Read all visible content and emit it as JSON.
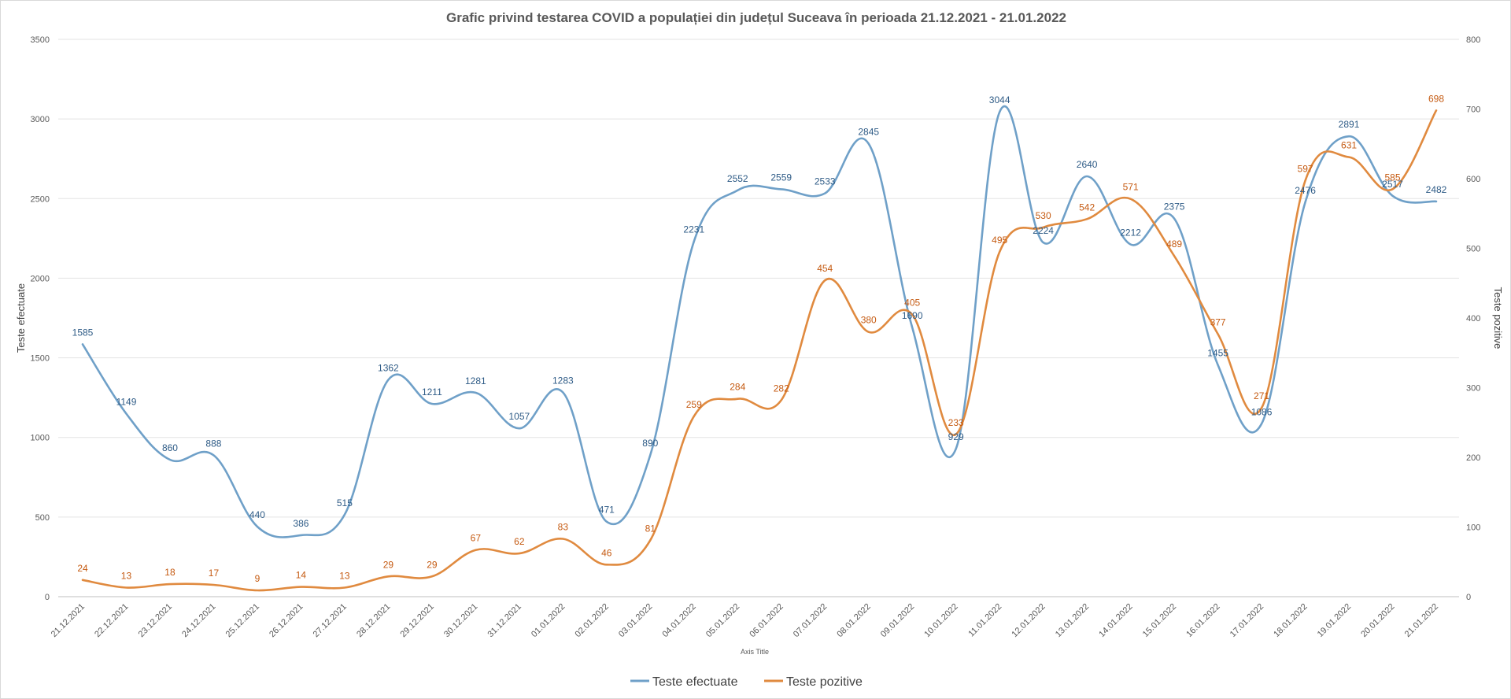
{
  "chart_data": {
    "type": "line",
    "title": "Grafic privind testarea COVID a populației din județul Suceava în perioada 21.12.2021 - 21.01.2022",
    "xlabel": "Axis Title",
    "ylabel_left": "Teste efectuate",
    "ylabel_right": "Teste pozitive",
    "ylim_left": [
      0,
      3500
    ],
    "yticks_left": [
      0,
      500,
      1000,
      1500,
      2000,
      2500,
      3000,
      3500
    ],
    "ylim_right": [
      0,
      800
    ],
    "yticks_right": [
      0,
      100,
      200,
      300,
      400,
      500,
      600,
      700,
      800
    ],
    "grid": true,
    "legend_position": "bottom",
    "smooth": true,
    "categories": [
      "21.12.2021",
      "22.12.2021",
      "23.12.2021",
      "24.12.2021",
      "25.12.2021",
      "26.12.2021",
      "27.12.2021",
      "28.12.2021",
      "29.12.2021",
      "30.12.2021",
      "31.12.2021",
      "01.01.2022",
      "02.01.2022",
      "03.01.2022",
      "04.01.2022",
      "05.01.2022",
      "06.01.2022",
      "07.01.2022",
      "08.01.2022",
      "09.01.2022",
      "10.01.2022",
      "11.01.2022",
      "12.01.2022",
      "13.01.2022",
      "14.01.2022",
      "15.01.2022",
      "16.01.2022",
      "17.01.2022",
      "18.01.2022",
      "19.01.2022",
      "20.01.2022",
      "21.01.2022"
    ],
    "series": [
      {
        "name": "Teste efectuate",
        "axis": "left",
        "color": "#6fa0c8",
        "label_color": "#2e5b86",
        "values": [
          1585,
          1149,
          860,
          888,
          440,
          386,
          515,
          1362,
          1211,
          1281,
          1057,
          1283,
          471,
          890,
          2231,
          2552,
          2559,
          2533,
          2845,
          1690,
          929,
          3044,
          2224,
          2640,
          2212,
          2375,
          1455,
          1086,
          2476,
          2891,
          2517,
          2482
        ]
      },
      {
        "name": "Teste pozitive",
        "axis": "right",
        "color": "#e08a3f",
        "label_color": "#c55a11",
        "values": [
          24,
          13,
          18,
          17,
          9,
          14,
          13,
          29,
          29,
          67,
          62,
          83,
          46,
          81,
          259,
          284,
          282,
          454,
          380,
          405,
          233,
          495,
          530,
          542,
          571,
          489,
          377,
          271,
          597,
          631,
          585,
          698
        ]
      }
    ]
  }
}
